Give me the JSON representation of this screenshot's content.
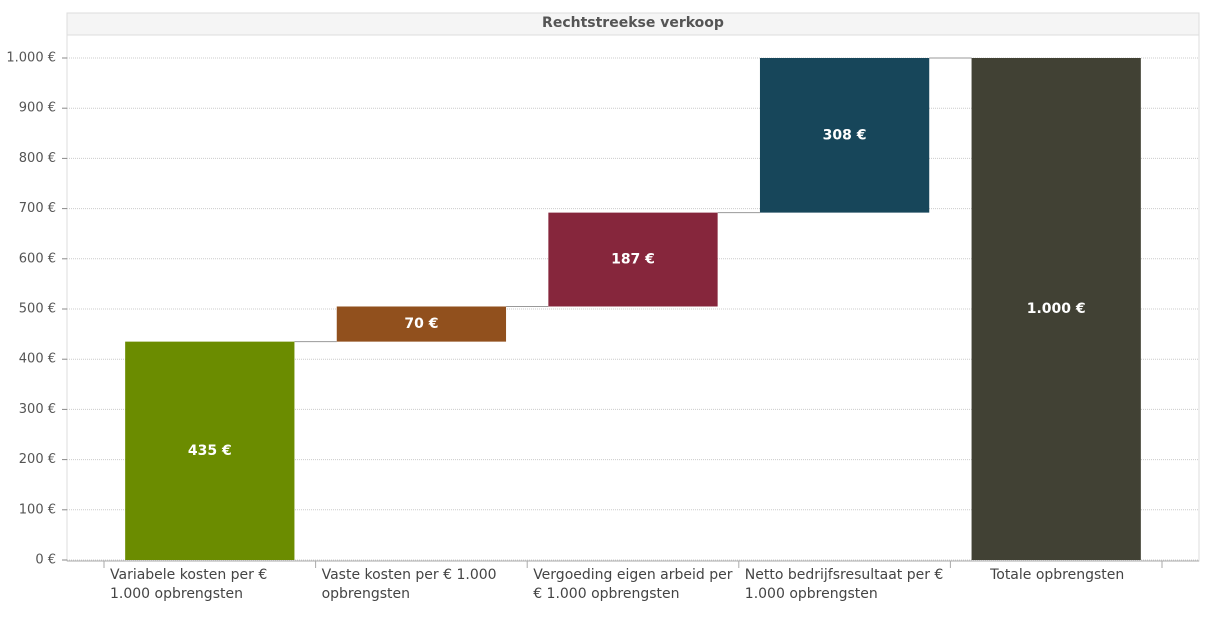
{
  "chart_data": {
    "type": "waterfall",
    "title": "Rechtstreekse verkoop",
    "categories": [
      "Variabele kosten per € 1.000 opbrengsten",
      "Vaste kosten per € 1.000 opbrengsten",
      "Vergoeding eigen arbeid per € 1.000 opbrengsten",
      "Netto bedrijfsresultaat per € 1.000 opbrengsten",
      "Totale opbrengsten"
    ],
    "values": [
      435,
      70,
      187,
      308,
      1000
    ],
    "value_labels": [
      "435 €",
      "70 €",
      "187 €",
      "308 €",
      "1.000 €"
    ],
    "colors": [
      "#6b8c00",
      "#91501d",
      "#86263c",
      "#17465a",
      "#414134"
    ],
    "is_total": [
      false,
      false,
      false,
      false,
      true
    ],
    "ylim": [
      0,
      1000
    ],
    "yticks": [
      {
        "value": 0,
        "label": "0 €"
      },
      {
        "value": 100,
        "label": "100 €"
      },
      {
        "value": 200,
        "label": "200 €"
      },
      {
        "value": 300,
        "label": "300 €"
      },
      {
        "value": 400,
        "label": "400 €"
      },
      {
        "value": 500,
        "label": "500 €"
      },
      {
        "value": 600,
        "label": "600 €"
      },
      {
        "value": 700,
        "label": "700 €"
      },
      {
        "value": 800,
        "label": "800 €"
      },
      {
        "value": 900,
        "label": "900 €"
      },
      {
        "value": 1000,
        "label": "1.000 €"
      }
    ],
    "grid": true
  }
}
